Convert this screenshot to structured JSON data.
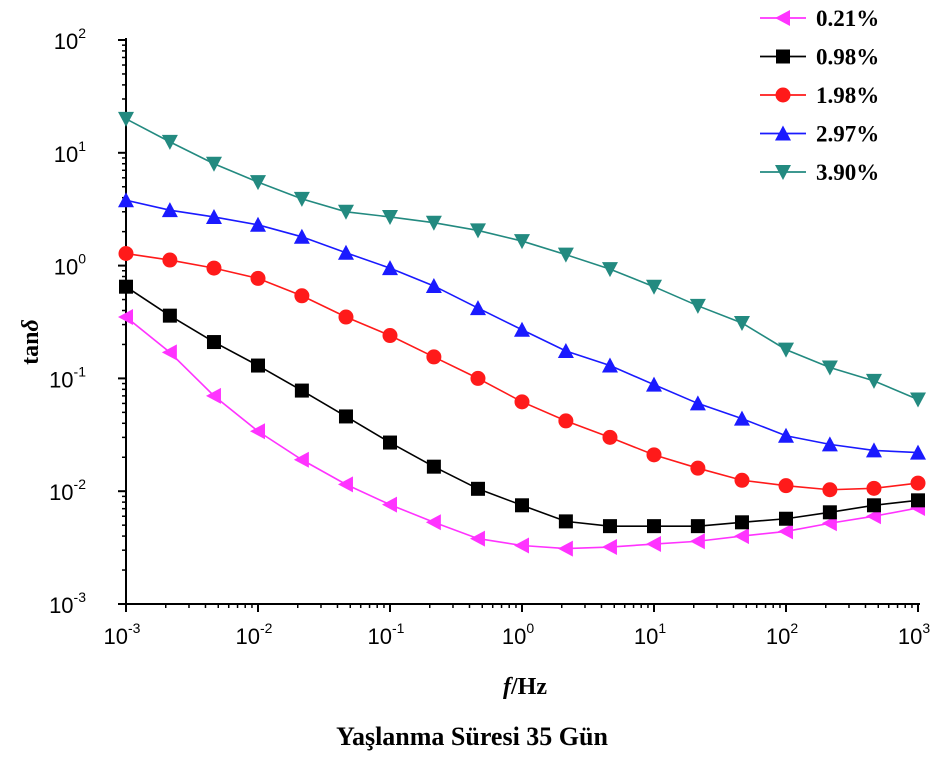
{
  "caption": "Yaşlanma Süresi 35 Gün",
  "chart_data": {
    "type": "line",
    "title": "",
    "xlabel": "f/Hz",
    "xlabel_italic_part": "f",
    "xlabel_rest": "/Hz",
    "ylabel": "tanδ",
    "ylabel_base": "tan",
    "ylabel_symbol": "δ",
    "x_scale": "log",
    "y_scale": "log",
    "xlim": [
      0.001,
      1000
    ],
    "ylim": [
      0.001,
      100
    ],
    "x_ticks": [
      {
        "base": "10",
        "exp": "-3",
        "value": 0.001
      },
      {
        "base": "10",
        "exp": "-2",
        "value": 0.01
      },
      {
        "base": "10",
        "exp": "-1",
        "value": 0.1
      },
      {
        "base": "10",
        "exp": "0",
        "value": 1,
        "label": "10",
        "full": true
      },
      {
        "base": "10",
        "exp": "1",
        "value": 10
      },
      {
        "base": "10",
        "exp": "2",
        "value": 100
      },
      {
        "base": "10",
        "exp": "3",
        "value": 1000
      }
    ],
    "y_ticks": [
      {
        "base": "10",
        "exp": "-3",
        "value": 0.001
      },
      {
        "base": "10",
        "exp": "-2",
        "value": 0.01
      },
      {
        "base": "10",
        "exp": "-1",
        "value": 0.1
      },
      {
        "base": "10",
        "exp": "0",
        "value": 1
      },
      {
        "base": "10",
        "exp": "1",
        "value": 10
      },
      {
        "base": "10",
        "exp": "2",
        "value": 100
      }
    ],
    "grid": false,
    "legend_position": "top-right",
    "x": [
      0.001,
      0.00215,
      0.00464,
      0.01,
      0.0215,
      0.0464,
      0.1,
      0.215,
      0.464,
      1,
      2.15,
      4.64,
      10,
      21.5,
      46.4,
      100,
      215,
      464,
      1000
    ],
    "series": [
      {
        "name": "0.21%",
        "color": "#ff33ff",
        "marker": "triangle-left",
        "values": [
          0.35,
          0.17,
          0.07,
          0.034,
          0.019,
          0.0115,
          0.0076,
          0.0053,
          0.0038,
          0.0033,
          0.0031,
          0.0032,
          0.0034,
          0.0036,
          0.004,
          0.0044,
          0.0052,
          0.006,
          0.0071
        ]
      },
      {
        "name": "0.98%",
        "color": "#000000",
        "marker": "square",
        "values": [
          0.65,
          0.36,
          0.21,
          0.13,
          0.078,
          0.046,
          0.027,
          0.0165,
          0.0105,
          0.0075,
          0.0054,
          0.0049,
          0.0049,
          0.0049,
          0.0053,
          0.0057,
          0.0065,
          0.0075,
          0.0083
        ]
      },
      {
        "name": "1.98%",
        "color": "#ff1a1a",
        "marker": "circle",
        "values": [
          1.28,
          1.12,
          0.95,
          0.77,
          0.54,
          0.35,
          0.24,
          0.155,
          0.1,
          0.062,
          0.042,
          0.03,
          0.021,
          0.016,
          0.0125,
          0.0112,
          0.0103,
          0.0106,
          0.0118
        ]
      },
      {
        "name": "2.97%",
        "color": "#1a1aff",
        "marker": "triangle-up",
        "values": [
          3.8,
          3.1,
          2.7,
          2.3,
          1.8,
          1.3,
          0.95,
          0.66,
          0.42,
          0.27,
          0.175,
          0.13,
          0.088,
          0.06,
          0.044,
          0.031,
          0.026,
          0.023,
          0.022
        ]
      },
      {
        "name": "3.90%",
        "color": "#238a80",
        "marker": "triangle-down",
        "values": [
          20,
          12.5,
          8.0,
          5.5,
          3.9,
          3.0,
          2.7,
          2.4,
          2.05,
          1.65,
          1.25,
          0.93,
          0.65,
          0.44,
          0.31,
          0.18,
          0.125,
          0.095,
          0.065
        ]
      }
    ]
  }
}
